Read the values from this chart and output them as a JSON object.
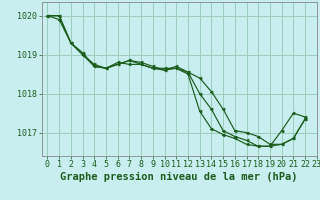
{
  "title": "Graphe pression niveau de la mer (hPa)",
  "background_color": "#c8eef0",
  "grid_color": "#99ccbb",
  "line_color": "#1a5c1a",
  "marker_color": "#1a5c1a",
  "xlim": [
    -0.5,
    23
  ],
  "ylim": [
    1016.4,
    1020.35
  ],
  "yticks": [
    1017,
    1018,
    1019,
    1020
  ],
  "xticks": [
    0,
    1,
    2,
    3,
    4,
    5,
    6,
    7,
    8,
    9,
    10,
    11,
    12,
    13,
    14,
    15,
    16,
    17,
    18,
    19,
    20,
    21,
    22,
    23
  ],
  "series": [
    {
      "x": [
        0,
        1,
        2,
        3,
        4,
        5,
        6,
        7,
        8,
        9,
        10,
        11,
        12,
        13,
        14,
        15,
        16,
        17,
        18,
        19,
        20,
        21,
        22
      ],
      "y": [
        1020.0,
        1020.0,
        1019.3,
        1019.0,
        1018.75,
        1018.65,
        1018.8,
        1018.75,
        1018.75,
        1018.65,
        1018.65,
        1018.65,
        1018.5,
        1017.55,
        1017.1,
        1016.95,
        1016.85,
        1016.7,
        1016.65,
        1016.65,
        1017.05,
        1017.5,
        1017.4
      ]
    },
    {
      "x": [
        0,
        1,
        2,
        3,
        4,
        5,
        6,
        7,
        8,
        9,
        10,
        11,
        12,
        13,
        14,
        15,
        16,
        17,
        18,
        19,
        20,
        21,
        22
      ],
      "y": [
        1020.0,
        1020.0,
        1019.3,
        1019.05,
        1018.7,
        1018.65,
        1018.75,
        1018.85,
        1018.75,
        1018.65,
        1018.6,
        1018.7,
        1018.55,
        1018.4,
        1018.05,
        1017.6,
        1017.05,
        1017.0,
        1016.9,
        1016.7,
        1016.7,
        1016.85,
        1017.35
      ]
    },
    {
      "x": [
        0,
        1,
        2,
        3,
        4,
        5,
        6,
        7,
        8,
        9,
        10,
        11,
        12,
        13,
        14,
        15,
        16,
        17,
        18,
        19,
        20,
        21,
        22
      ],
      "y": [
        1020.0,
        1019.9,
        1019.3,
        1019.0,
        1018.7,
        1018.65,
        1018.75,
        1018.85,
        1018.8,
        1018.7,
        1018.6,
        1018.65,
        1018.55,
        1018.0,
        1017.6,
        1017.05,
        1016.9,
        1016.8,
        1016.65,
        1016.65,
        1016.7,
        1016.85,
        1017.35
      ]
    }
  ],
  "title_fontsize": 7.5,
  "tick_fontsize": 6.0
}
